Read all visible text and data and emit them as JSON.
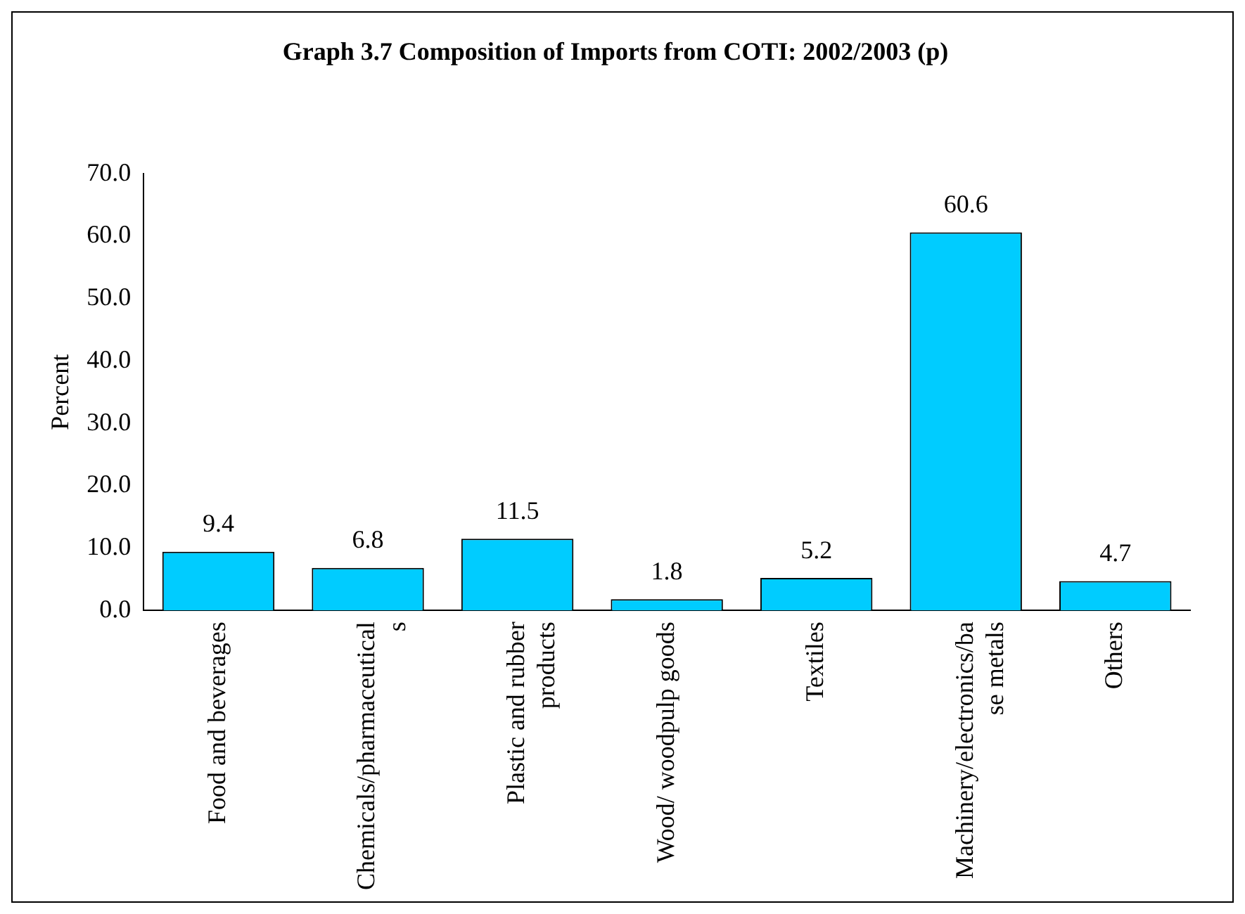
{
  "chart_data": {
    "type": "bar",
    "title": "Graph 3.7 Composition of Imports from COTI: 2002/2003 (p)",
    "ylabel": "Percent",
    "categories": [
      "Food and beverages",
      "Chemicals/pharmaceuticals",
      "Plastic and rubber products",
      "Wood/ woodpulp goods",
      "Textiles",
      "Machinery/electronics/base metals",
      "Others"
    ],
    "values": [
      9.4,
      6.8,
      11.5,
      1.8,
      5.2,
      60.6,
      4.7
    ],
    "color": "#00ccff",
    "ylim": [
      0,
      70
    ],
    "yticks": [
      {
        "value": 0,
        "label": "0.0"
      },
      {
        "value": 10,
        "label": "10.0"
      },
      {
        "value": 20,
        "label": "20.0"
      },
      {
        "value": 30,
        "label": "30.0"
      },
      {
        "value": 40,
        "label": "40.0"
      },
      {
        "value": 50,
        "label": "50.0"
      },
      {
        "value": 60,
        "label": "60.0"
      },
      {
        "value": 70,
        "label": "70.0"
      }
    ],
    "data_labels": true,
    "grid": false,
    "legend": false
  }
}
